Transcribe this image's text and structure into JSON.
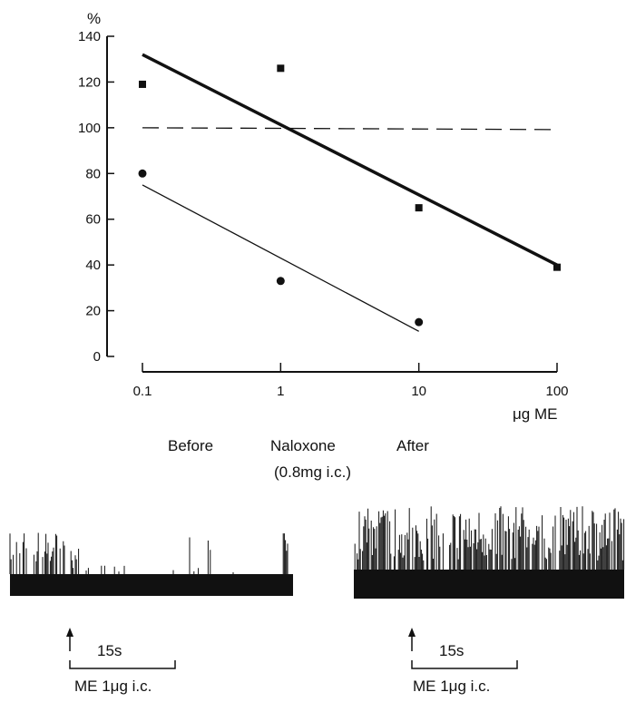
{
  "chart_data": {
    "type": "scatter",
    "y_unit_label": "%",
    "x_unit_label": "μg ME",
    "x_scale": "log",
    "xlim": [
      0.1,
      100
    ],
    "ylim": [
      0,
      140
    ],
    "x_ticks": [
      "0.1",
      "1",
      "10",
      "100"
    ],
    "y_ticks": [
      "0",
      "20",
      "40",
      "60",
      "80",
      "100",
      "120",
      "140"
    ],
    "series": [
      {
        "marker": "square",
        "color": "#111111",
        "points": [
          {
            "x": 0.1,
            "y": 119
          },
          {
            "x": 1,
            "y": 126
          },
          {
            "x": 10,
            "y": 65
          },
          {
            "x": 100,
            "y": 39
          }
        ],
        "fit": {
          "x": [
            0.1,
            100
          ],
          "y": [
            132,
            40
          ]
        }
      },
      {
        "marker": "circle",
        "color": "#111111",
        "points": [
          {
            "x": 0.1,
            "y": 80
          },
          {
            "x": 1,
            "y": 33
          },
          {
            "x": 10,
            "y": 15
          }
        ],
        "fit": {
          "x": [
            0.1,
            10
          ],
          "y": [
            75,
            11
          ]
        }
      }
    ],
    "reference_line": {
      "y": 100,
      "style": "dashed"
    }
  },
  "legend_labels": {
    "before": "Before",
    "naloxone": "Naloxone",
    "naloxone_dose": "(0.8mg i.c.)",
    "after": "After"
  },
  "traces": [
    {
      "scale_label": "15s",
      "stimulus_label": "ME 1μg i.c."
    },
    {
      "scale_label": "15s",
      "stimulus_label": "ME 1μg i.c."
    }
  ]
}
